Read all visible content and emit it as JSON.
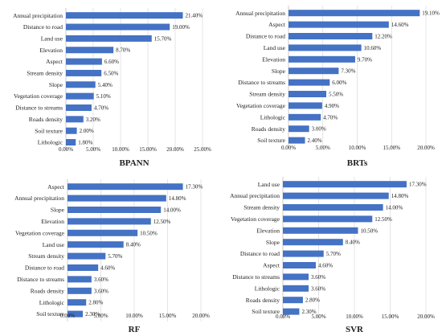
{
  "chart_data": [
    {
      "type": "bar",
      "orientation": "horizontal",
      "title": "BPANN",
      "categories": [
        "Annual precipitation",
        "Distance to road",
        "Land use",
        "Elevation",
        "Aspect",
        "Stream density",
        "Slope",
        "Vegetation coverage",
        "Distance to streams",
        "Roads density",
        "Soil texture",
        "Lithologic"
      ],
      "values": [
        21.4,
        19.0,
        15.7,
        8.7,
        6.6,
        6.5,
        5.4,
        5.1,
        4.7,
        3.2,
        2.0,
        1.8
      ],
      "value_labels": [
        "21.40%",
        "19.00%",
        "15.70%",
        "8.70%",
        "6.60%",
        "6.50%",
        "5.40%",
        "5.10%",
        "4.70%",
        "3.20%",
        "2.00%",
        "1.80%"
      ],
      "xlim": [
        0,
        25
      ],
      "ticks": [
        0,
        5,
        10,
        15,
        20,
        25
      ],
      "tick_labels": [
        "0.00%",
        "5.00%",
        "10.00%",
        "15.00%",
        "20.00%",
        "25.00%"
      ],
      "xlabel": "",
      "ylabel": "",
      "grid": true,
      "color": "#4472C4"
    },
    {
      "type": "bar",
      "orientation": "horizontal",
      "title": "BRTs",
      "categories": [
        "Annual precipitation",
        "Aspect",
        "Distance to road",
        "Land use",
        "Elevation",
        "Slope",
        "Distance to streams",
        "Stream density",
        "Vegetation coverage",
        "Lithologic",
        "Roads density",
        "Soil texture"
      ],
      "values": [
        19.1,
        14.6,
        12.2,
        10.6,
        9.7,
        7.3,
        6.0,
        5.5,
        4.9,
        4.7,
        3.0,
        2.4
      ],
      "value_labels": [
        "19.10%",
        "14.60%",
        "12.20%",
        "10.60%",
        "9.70%",
        "7.30%",
        "6.00%",
        "5.50%",
        "4.90%",
        "4.70%",
        "3.00%",
        "2.40%"
      ],
      "xlim": [
        0,
        20
      ],
      "ticks": [
        0,
        5,
        10,
        15,
        20
      ],
      "tick_labels": [
        "0.00%",
        "5.00%",
        "10.00%",
        "15.00%",
        "20.00%"
      ],
      "xlabel": "",
      "ylabel": "",
      "grid": true,
      "color": "#4472C4"
    },
    {
      "type": "bar",
      "orientation": "horizontal",
      "title": "RF",
      "categories": [
        "Aspect",
        "Annual precipitation",
        "Slope",
        "Elevation",
        "Vegetation coverage",
        "Land use",
        "Stream density",
        "Distance to road",
        "Distance to streams",
        "Roads density",
        "Lithologic",
        "Soil texture"
      ],
      "values": [
        17.3,
        14.8,
        14.0,
        12.5,
        10.5,
        8.4,
        5.7,
        4.6,
        3.6,
        3.6,
        2.8,
        2.3
      ],
      "value_labels": [
        "17.30%",
        "14.80%",
        "14.00%",
        "12.50%",
        "10.50%",
        "8.40%",
        "5.70%",
        "4.60%",
        "3.60%",
        "3.60%",
        "2.80%",
        "2.30%"
      ],
      "xlim": [
        0,
        20
      ],
      "ticks": [
        0,
        5,
        10,
        15,
        20
      ],
      "tick_labels": [
        "0.00%",
        "5.00%",
        "10.00%",
        "15.00%",
        "20.00%"
      ],
      "xlabel": "",
      "ylabel": "",
      "grid": true,
      "color": "#4472C4"
    },
    {
      "type": "bar",
      "orientation": "horizontal",
      "title": "SVR",
      "categories": [
        "Land use",
        "Annual precipitation",
        "Stream density",
        "Vegetation coverage",
        "Elevation",
        "Slope",
        "Distance to road",
        "Aspect",
        "Distance to streams",
        "Lithologic",
        "Roads density",
        "Soil texture"
      ],
      "values": [
        17.3,
        14.8,
        14.0,
        12.5,
        10.5,
        8.4,
        5.7,
        4.6,
        3.6,
        3.6,
        2.8,
        2.3
      ],
      "value_labels": [
        "17.30%",
        "14.80%",
        "14.00%",
        "12.50%",
        "10.50%",
        "8.40%",
        "5.70%",
        "4.60%",
        "3.60%",
        "3.60%",
        "2.80%",
        "2.30%"
      ],
      "xlim": [
        0,
        20
      ],
      "ticks": [
        0,
        5,
        10,
        15,
        20
      ],
      "tick_labels": [
        "0.00%",
        "5.00%",
        "10.00%",
        "15.00%",
        "20.00%"
      ],
      "xlabel": "",
      "ylabel": "",
      "grid": true,
      "color": "#4472C4"
    }
  ]
}
